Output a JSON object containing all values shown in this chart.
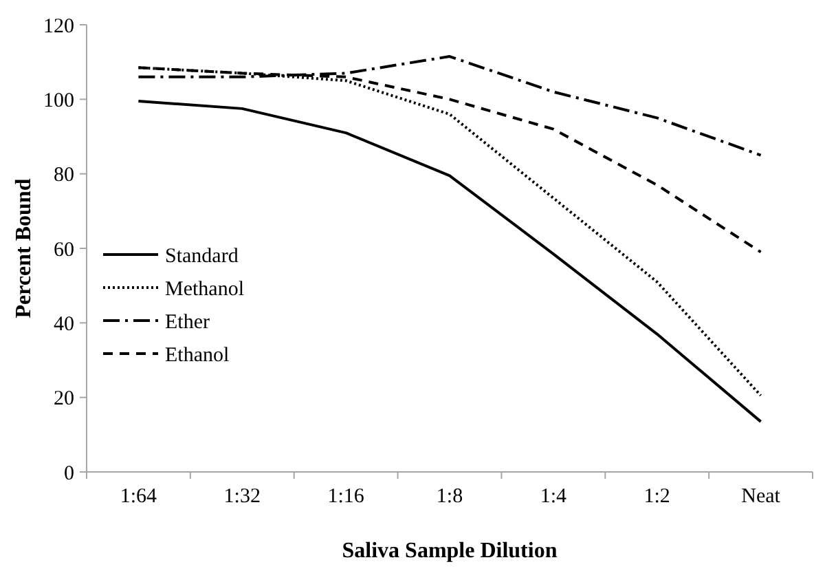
{
  "chart_data": {
    "type": "line",
    "xlabel": "Saliva Sample Dilution",
    "ylabel": "Percent Bound",
    "categories": [
      "1:64",
      "1:32",
      "1:16",
      "1:8",
      "1:4",
      "1:2",
      "Neat"
    ],
    "ylim": [
      0,
      120
    ],
    "yticks": [
      0,
      20,
      40,
      60,
      80,
      100,
      120
    ],
    "grid": false,
    "legend": "left",
    "marker": "none",
    "series": [
      {
        "name": "Standard",
        "color": "#000000",
        "line_style": "solid",
        "values": [
          99.5,
          97.5,
          91,
          79.5,
          58.5,
          37,
          13.5
        ]
      },
      {
        "name": "Methanol",
        "color": "#000000",
        "line_style": "dotted",
        "values": [
          108.5,
          107,
          105,
          96,
          73.5,
          51,
          20.5
        ]
      },
      {
        "name": "Ether",
        "color": "#000000",
        "line_style": "dashdot",
        "values": [
          106,
          106,
          107,
          111.5,
          102,
          95,
          85
        ]
      },
      {
        "name": "Ethanol",
        "color": "#000000",
        "line_style": "dashed",
        "values": [
          108.5,
          107,
          106,
          100,
          92,
          77,
          59
        ]
      }
    ]
  }
}
